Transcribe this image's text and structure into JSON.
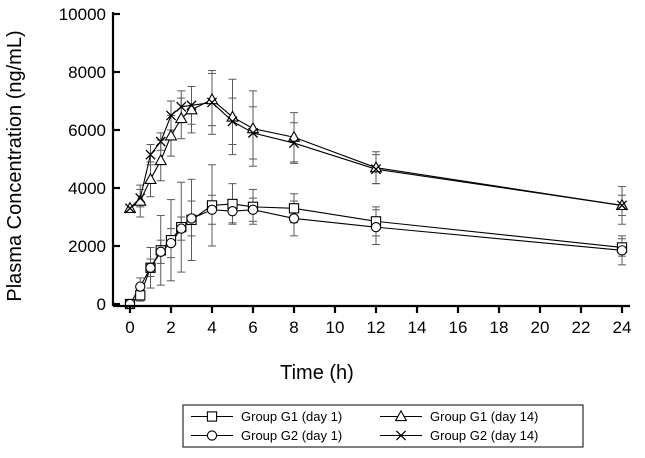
{
  "chart_data": {
    "type": "line",
    "title": "",
    "xlabel": "Time (h)",
    "ylabel": "Plasma Concentration (ng/mL)",
    "xlim": [
      0,
      24
    ],
    "ylim": [
      0,
      10000
    ],
    "x_ticks": [
      0,
      2,
      4,
      6,
      8,
      10,
      12,
      14,
      16,
      18,
      20,
      22,
      24
    ],
    "y_ticks": [
      0,
      2000,
      4000,
      6000,
      8000,
      10000
    ],
    "x_tick_labels": [
      "0",
      "2",
      "4",
      "6",
      "8",
      "10",
      "12",
      "14",
      "16",
      "18",
      "20",
      "22",
      "24"
    ],
    "y_tick_labels": [
      "0",
      "2000",
      "4000",
      "6000",
      "8000",
      "10000"
    ],
    "legend_position": "bottom-center",
    "series": [
      {
        "name": "Group G1 (day 1)",
        "marker": "square",
        "x": [
          0,
          0.5,
          1,
          1.5,
          2,
          2.5,
          3,
          4,
          5,
          6,
          8,
          12,
          24
        ],
        "y": [
          0,
          300,
          1250,
          1850,
          2200,
          2650,
          2900,
          3400,
          3450,
          3350,
          3300,
          2850,
          1950
        ],
        "err": [
          0,
          200,
          700,
          1200,
          1400,
          1550,
          1400,
          1400,
          700,
          600,
          500,
          500,
          300
        ]
      },
      {
        "name": "Group G2 (day 1)",
        "marker": "circle",
        "x": [
          0,
          0.5,
          1,
          1.5,
          2,
          2.5,
          3,
          4,
          5,
          6,
          8,
          12,
          24
        ],
        "y": [
          0,
          600,
          1250,
          1800,
          2100,
          2600,
          2950,
          3250,
          3200,
          3250,
          2950,
          2650,
          1850
        ],
        "err": [
          0,
          300,
          300,
          400,
          500,
          400,
          600,
          500,
          400,
          400,
          600,
          600,
          500
        ]
      },
      {
        "name": "Group G1 (day 14)",
        "marker": "triangle",
        "x": [
          0,
          0.5,
          1,
          1.5,
          2,
          2.5,
          3,
          4,
          5,
          6,
          8,
          12,
          24
        ],
        "y": [
          3300,
          3550,
          4300,
          4950,
          5800,
          6400,
          6700,
          7050,
          6450,
          6050,
          5750,
          4700,
          3400
        ],
        "err": [
          0,
          550,
          600,
          700,
          700,
          700,
          800,
          900,
          1300,
          1300,
          850,
          550,
          650
        ]
      },
      {
        "name": "Group G2 (day 14)",
        "marker": "x",
        "x": [
          0,
          0.5,
          1,
          1.5,
          2,
          2.5,
          3,
          4,
          5,
          6,
          8,
          12,
          24
        ],
        "y": [
          3300,
          3650,
          5150,
          5600,
          6500,
          6800,
          6850,
          6950,
          6300,
          5900,
          5550,
          4650,
          3400
        ],
        "err": [
          0,
          300,
          350,
          300,
          500,
          550,
          650,
          1100,
          800,
          900,
          700,
          500,
          350
        ]
      }
    ],
    "legend": [
      "Group G1 (day 1)",
      "Group G1 (day 14)",
      "Group G2 (day 1)",
      "Group G2 (day 14)"
    ]
  }
}
